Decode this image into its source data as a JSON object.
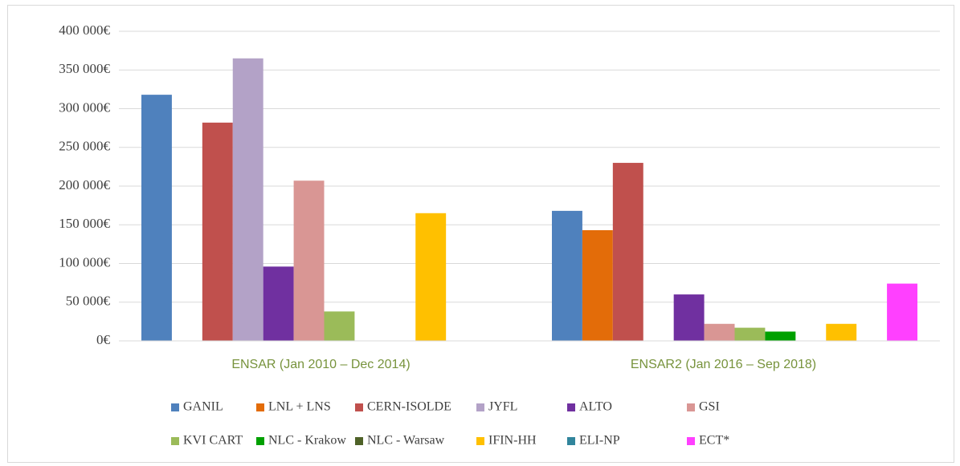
{
  "chart_data": {
    "type": "bar",
    "categories": [
      "ENSAR (Jan 2010 – Dec 2014)",
      "ENSAR2 (Jan 2016 – Sep 2018)"
    ],
    "series": [
      {
        "name": "GANIL",
        "color": "#4f81bd",
        "values": [
          318000,
          168000
        ]
      },
      {
        "name": "LNL + LNS",
        "color": "#e36c09",
        "values": [
          0,
          143000
        ]
      },
      {
        "name": "CERN-ISOLDE",
        "color": "#c0504d",
        "values": [
          282000,
          230000
        ]
      },
      {
        "name": "JYFL",
        "color": "#b3a2c7",
        "values": [
          365000,
          0
        ]
      },
      {
        "name": "ALTO",
        "color": "#7030a0",
        "values": [
          96000,
          60000
        ]
      },
      {
        "name": "GSI",
        "color": "#d99694",
        "values": [
          207000,
          22000
        ]
      },
      {
        "name": "KVI CART",
        "color": "#9bbb59",
        "values": [
          38000,
          17000
        ]
      },
      {
        "name": "NLC - Krakow",
        "color": "#00a000",
        "values": [
          0,
          12000
        ]
      },
      {
        "name": "NLC - Warsaw",
        "color": "#4f6228",
        "values": [
          0,
          0
        ]
      },
      {
        "name": "IFIN-HH",
        "color": "#ffc000",
        "values": [
          165000,
          22000
        ]
      },
      {
        "name": "ELI-NP",
        "color": "#31859c",
        "values": [
          0,
          0
        ]
      },
      {
        "name": "ECT*",
        "color": "#ff40ff",
        "values": [
          0,
          74000
        ]
      }
    ],
    "ylim": [
      0,
      400000
    ],
    "yticks": [
      {
        "value": 0,
        "label": "0€"
      },
      {
        "value": 50000,
        "label": "50 000€"
      },
      {
        "value": 100000,
        "label": "100 000€"
      },
      {
        "value": 150000,
        "label": "150 000€"
      },
      {
        "value": 200000,
        "label": "200 000€"
      },
      {
        "value": 250000,
        "label": "250 000€"
      },
      {
        "value": 300000,
        "label": "300 000€"
      },
      {
        "value": 350000,
        "label": "350 000€"
      },
      {
        "value": 400000,
        "label": "400 000€"
      }
    ],
    "grid": true,
    "legend": "bottom"
  }
}
